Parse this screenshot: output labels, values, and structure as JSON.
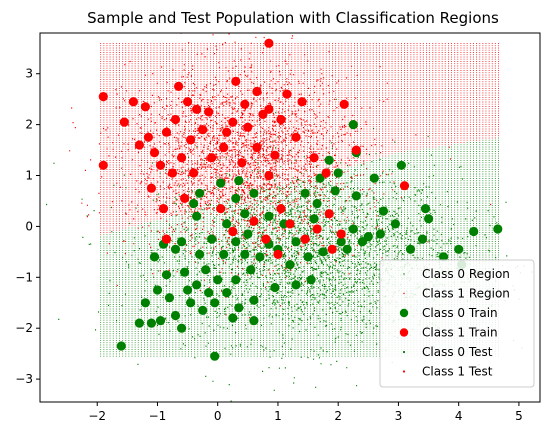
{
  "chart_data": {
    "type": "scatter",
    "title": "Sample and Test Population with Classification Regions",
    "xlabel": "",
    "ylabel": "",
    "xlim": [
      -2.95,
      5.35
    ],
    "ylim": [
      -3.45,
      3.8
    ],
    "x_ticks": [
      -2,
      -1,
      0,
      1,
      2,
      3,
      4,
      5
    ],
    "y_ticks": [
      -3,
      -2,
      -1,
      0,
      1,
      2,
      3
    ],
    "x_tick_labels": [
      "−2",
      "−1",
      "0",
      "1",
      "2",
      "3",
      "4",
      "5"
    ],
    "y_tick_labels": [
      "−3",
      "−2",
      "−1",
      "0",
      "1",
      "2",
      "3"
    ],
    "grid": false,
    "legend_position": "lower right",
    "colors": {
      "class0": "#008000",
      "class1": "#ff0000"
    },
    "region": {
      "x_range": [
        -1.95,
        4.7
      ],
      "y_range": [
        -2.55,
        3.6
      ],
      "boundary": [
        [
          -1.95,
          -0.18
        ],
        [
          3.0,
          1.45
        ],
        [
          4.7,
          1.75
        ]
      ]
    },
    "series": [
      {
        "name": "Class 0 Region",
        "marker": "tiny-dot"
      },
      {
        "name": "Class 1 Region",
        "marker": "tiny-dot"
      },
      {
        "name": "Class 0 Train",
        "marker": "large-dot",
        "points": [
          [
            -1.6,
            -2.35
          ],
          [
            -1.3,
            -1.9
          ],
          [
            -1.1,
            -1.9
          ],
          [
            -1.2,
            -1.5
          ],
          [
            -1.0,
            -1.25
          ],
          [
            -0.85,
            -0.95
          ],
          [
            -1.05,
            -0.6
          ],
          [
            -0.7,
            -0.45
          ],
          [
            -0.9,
            -0.35
          ],
          [
            -0.6,
            -0.3
          ],
          [
            -0.3,
            -0.55
          ],
          [
            -0.55,
            -0.9
          ],
          [
            -0.35,
            -1.15
          ],
          [
            -0.15,
            -1.3
          ],
          [
            -0.45,
            -1.5
          ],
          [
            -0.25,
            -1.65
          ],
          [
            -0.05,
            -1.5
          ],
          [
            0.15,
            -1.3
          ],
          [
            0.35,
            -1.6
          ],
          [
            0.6,
            -1.45
          ],
          [
            -0.7,
            -1.75
          ],
          [
            -0.95,
            -1.85
          ],
          [
            -0.6,
            -2.0
          ],
          [
            0.25,
            -1.8
          ],
          [
            0.6,
            -1.85
          ],
          [
            -0.05,
            -2.55
          ],
          [
            0.95,
            -1.2
          ],
          [
            1.3,
            -1.15
          ],
          [
            1.55,
            -1.05
          ],
          [
            0.3,
            -1.05
          ],
          [
            0.55,
            -0.85
          ],
          [
            0.7,
            -0.6
          ],
          [
            0.85,
            -0.35
          ],
          [
            0.5,
            -0.15
          ],
          [
            0.3,
            -0.3
          ],
          [
            0.1,
            -0.55
          ],
          [
            -0.1,
            -0.25
          ],
          [
            0.15,
            0.05
          ],
          [
            0.45,
            0.25
          ],
          [
            0.3,
            0.55
          ],
          [
            0.6,
            0.65
          ],
          [
            0.35,
            0.9
          ],
          [
            0.05,
            0.85
          ],
          [
            -0.3,
            0.65
          ],
          [
            -0.4,
            0.45
          ],
          [
            1.1,
            0.05
          ],
          [
            1.3,
            -0.3
          ],
          [
            1.5,
            -0.6
          ],
          [
            1.2,
            -0.75
          ],
          [
            1.75,
            -0.5
          ],
          [
            2.05,
            -0.3
          ],
          [
            2.25,
            -0.05
          ],
          [
            2.5,
            -0.2
          ],
          [
            2.15,
            -0.45
          ],
          [
            2.75,
            0.3
          ],
          [
            2.95,
            0.05
          ],
          [
            2.7,
            -0.15
          ],
          [
            3.05,
            1.2
          ],
          [
            2.3,
            1.45
          ],
          [
            1.85,
            1.3
          ],
          [
            2.0,
            1.05
          ],
          [
            1.7,
            0.95
          ],
          [
            1.45,
            0.65
          ],
          [
            1.65,
            0.45
          ],
          [
            1.95,
            0.7
          ],
          [
            2.3,
            0.6
          ],
          [
            2.6,
            0.95
          ],
          [
            2.25,
            2.0
          ],
          [
            1.6,
            0.15
          ],
          [
            3.2,
            -0.45
          ],
          [
            3.45,
            0.35
          ],
          [
            3.5,
            0.15
          ],
          [
            3.4,
            -0.25
          ],
          [
            3.75,
            -0.6
          ],
          [
            4.0,
            -0.45
          ],
          [
            4.25,
            -0.1
          ],
          [
            4.05,
            -0.75
          ],
          [
            4.65,
            -0.05
          ],
          [
            2.4,
            -0.3
          ],
          [
            0.85,
            0.2
          ],
          [
            1.0,
            -0.45
          ],
          [
            -0.2,
            -0.85
          ],
          [
            -0.5,
            -1.25
          ],
          [
            -0.8,
            -1.4
          ],
          [
            0.0,
            -1.05
          ],
          [
            0.45,
            -0.55
          ],
          [
            -0.35,
            0.2
          ]
        ]
      },
      {
        "name": "Class 1 Train",
        "marker": "large-dot",
        "points": [
          [
            -1.9,
            2.55
          ],
          [
            -1.9,
            1.2
          ],
          [
            -1.55,
            2.05
          ],
          [
            -1.4,
            2.45
          ],
          [
            -1.2,
            2.35
          ],
          [
            -1.3,
            1.6
          ],
          [
            -1.15,
            1.75
          ],
          [
            -1.05,
            1.45
          ],
          [
            -0.95,
            1.2
          ],
          [
            -0.85,
            1.85
          ],
          [
            -0.7,
            2.1
          ],
          [
            -0.5,
            2.45
          ],
          [
            -0.35,
            2.3
          ],
          [
            -0.15,
            2.25
          ],
          [
            -0.25,
            1.9
          ],
          [
            -0.45,
            1.7
          ],
          [
            -0.6,
            1.35
          ],
          [
            -0.75,
            1.05
          ],
          [
            -0.4,
            1.05
          ],
          [
            -0.1,
            1.35
          ],
          [
            0.1,
            1.55
          ],
          [
            0.25,
            2.05
          ],
          [
            0.3,
            2.85
          ],
          [
            0.45,
            2.4
          ],
          [
            0.65,
            2.65
          ],
          [
            0.85,
            2.3
          ],
          [
            0.5,
            1.95
          ],
          [
            0.65,
            1.55
          ],
          [
            0.4,
            1.25
          ],
          [
            0.85,
            1.0
          ],
          [
            0.95,
            1.4
          ],
          [
            1.05,
            2.1
          ],
          [
            0.85,
            3.6
          ],
          [
            1.15,
            2.6
          ],
          [
            1.4,
            2.45
          ],
          [
            1.3,
            1.75
          ],
          [
            1.6,
            1.35
          ],
          [
            1.8,
            1.05
          ],
          [
            1.05,
            0.35
          ],
          [
            1.2,
            0.05
          ],
          [
            1.45,
            -0.25
          ],
          [
            1.65,
            -0.05
          ],
          [
            1.85,
            0.25
          ],
          [
            1.9,
            -0.45
          ],
          [
            2.05,
            -0.15
          ],
          [
            2.3,
            1.5
          ],
          [
            2.1,
            2.4
          ],
          [
            3.1,
            0.8
          ],
          [
            -0.9,
            0.35
          ],
          [
            -0.85,
            -0.25
          ],
          [
            -1.1,
            0.75
          ],
          [
            0.25,
            -0.1
          ],
          [
            0.6,
            0.1
          ],
          [
            0.8,
            -0.25
          ],
          [
            1.0,
            -0.55
          ],
          [
            0.05,
            0.35
          ],
          [
            -0.55,
            0.55
          ],
          [
            0.15,
            1.85
          ],
          [
            -0.65,
            2.75
          ],
          [
            0.75,
            2.2
          ]
        ]
      },
      {
        "name": "Class 0 Test",
        "marker": "small-dot"
      },
      {
        "name": "Class 1 Test",
        "marker": "small-dot"
      }
    ],
    "legend": [
      {
        "label": "Class 0 Region",
        "color": "#008000",
        "marker": "tiny"
      },
      {
        "label": "Class 1 Region",
        "color": "#ff0000",
        "marker": "tiny"
      },
      {
        "label": "Class 0 Train",
        "color": "#008000",
        "marker": "large"
      },
      {
        "label": "Class 1 Train",
        "color": "#ff0000",
        "marker": "large"
      },
      {
        "label": "Class 0 Test",
        "color": "#008000",
        "marker": "small"
      },
      {
        "label": "Class 1 Test",
        "color": "#ff0000",
        "marker": "small"
      }
    ]
  }
}
